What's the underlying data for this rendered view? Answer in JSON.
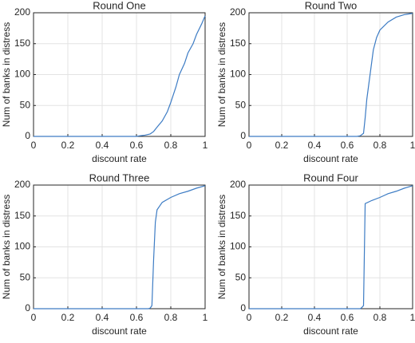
{
  "chart_data": [
    {
      "type": "line",
      "title": "Round One",
      "x_label": "discount rate",
      "y_label": "Num of banks in distress",
      "x": [
        0,
        0.6,
        0.62,
        0.65,
        0.68,
        0.7,
        0.72,
        0.75,
        0.78,
        0.8,
        0.83,
        0.85,
        0.88,
        0.9,
        0.93,
        0.95,
        0.98,
        1
      ],
      "values": [
        0,
        0,
        1,
        2,
        4,
        8,
        15,
        25,
        40,
        55,
        80,
        100,
        118,
        135,
        150,
        165,
        182,
        195
      ],
      "color": "#3d7cc4",
      "xlim": [
        0,
        1
      ],
      "ylim": [
        0,
        200
      ],
      "xticks": [
        0,
        0.2,
        0.4,
        0.6,
        0.8,
        1
      ],
      "yticks": [
        0,
        50,
        100,
        150,
        200
      ],
      "grid": true
    },
    {
      "type": "line",
      "title": "Round Two",
      "x_label": "discount rate",
      "y_label": "Num of banks in distress",
      "x": [
        0,
        0.66,
        0.68,
        0.7,
        0.71,
        0.72,
        0.74,
        0.76,
        0.78,
        0.8,
        0.85,
        0.9,
        0.95,
        1
      ],
      "values": [
        0,
        0,
        1,
        5,
        30,
        60,
        100,
        140,
        160,
        172,
        185,
        193,
        197,
        199
      ],
      "color": "#3d7cc4",
      "xlim": [
        0,
        1
      ],
      "ylim": [
        0,
        200
      ],
      "xticks": [
        0,
        0.2,
        0.4,
        0.6,
        0.8,
        1
      ],
      "yticks": [
        0,
        50,
        100,
        150,
        200
      ],
      "grid": true
    },
    {
      "type": "line",
      "title": "Round Three",
      "x_label": "discount rate",
      "y_label": "Num of banks in distress",
      "x": [
        0,
        0.67,
        0.68,
        0.69,
        0.7,
        0.71,
        0.72,
        0.75,
        0.8,
        0.85,
        0.9,
        0.95,
        1
      ],
      "values": [
        0,
        0,
        1,
        5,
        80,
        140,
        160,
        172,
        180,
        186,
        190,
        195,
        199
      ],
      "color": "#3d7cc4",
      "xlim": [
        0,
        1
      ],
      "ylim": [
        0,
        200
      ],
      "xticks": [
        0,
        0.2,
        0.4,
        0.6,
        0.8,
        1
      ],
      "yticks": [
        0,
        50,
        100,
        150,
        200
      ],
      "grid": true
    },
    {
      "type": "line",
      "title": "Round Four",
      "x_label": "discount rate",
      "y_label": "Num of banks in distress",
      "x": [
        0,
        0.68,
        0.69,
        0.7,
        0.71,
        0.75,
        0.8,
        0.85,
        0.9,
        0.95,
        1
      ],
      "values": [
        0,
        0,
        2,
        5,
        170,
        175,
        180,
        186,
        190,
        195,
        199
      ],
      "color": "#3d7cc4",
      "xlim": [
        0,
        1
      ],
      "ylim": [
        0,
        200
      ],
      "xticks": [
        0,
        0.2,
        0.4,
        0.6,
        0.8,
        1
      ],
      "yticks": [
        0,
        50,
        100,
        150,
        200
      ],
      "grid": true
    }
  ]
}
